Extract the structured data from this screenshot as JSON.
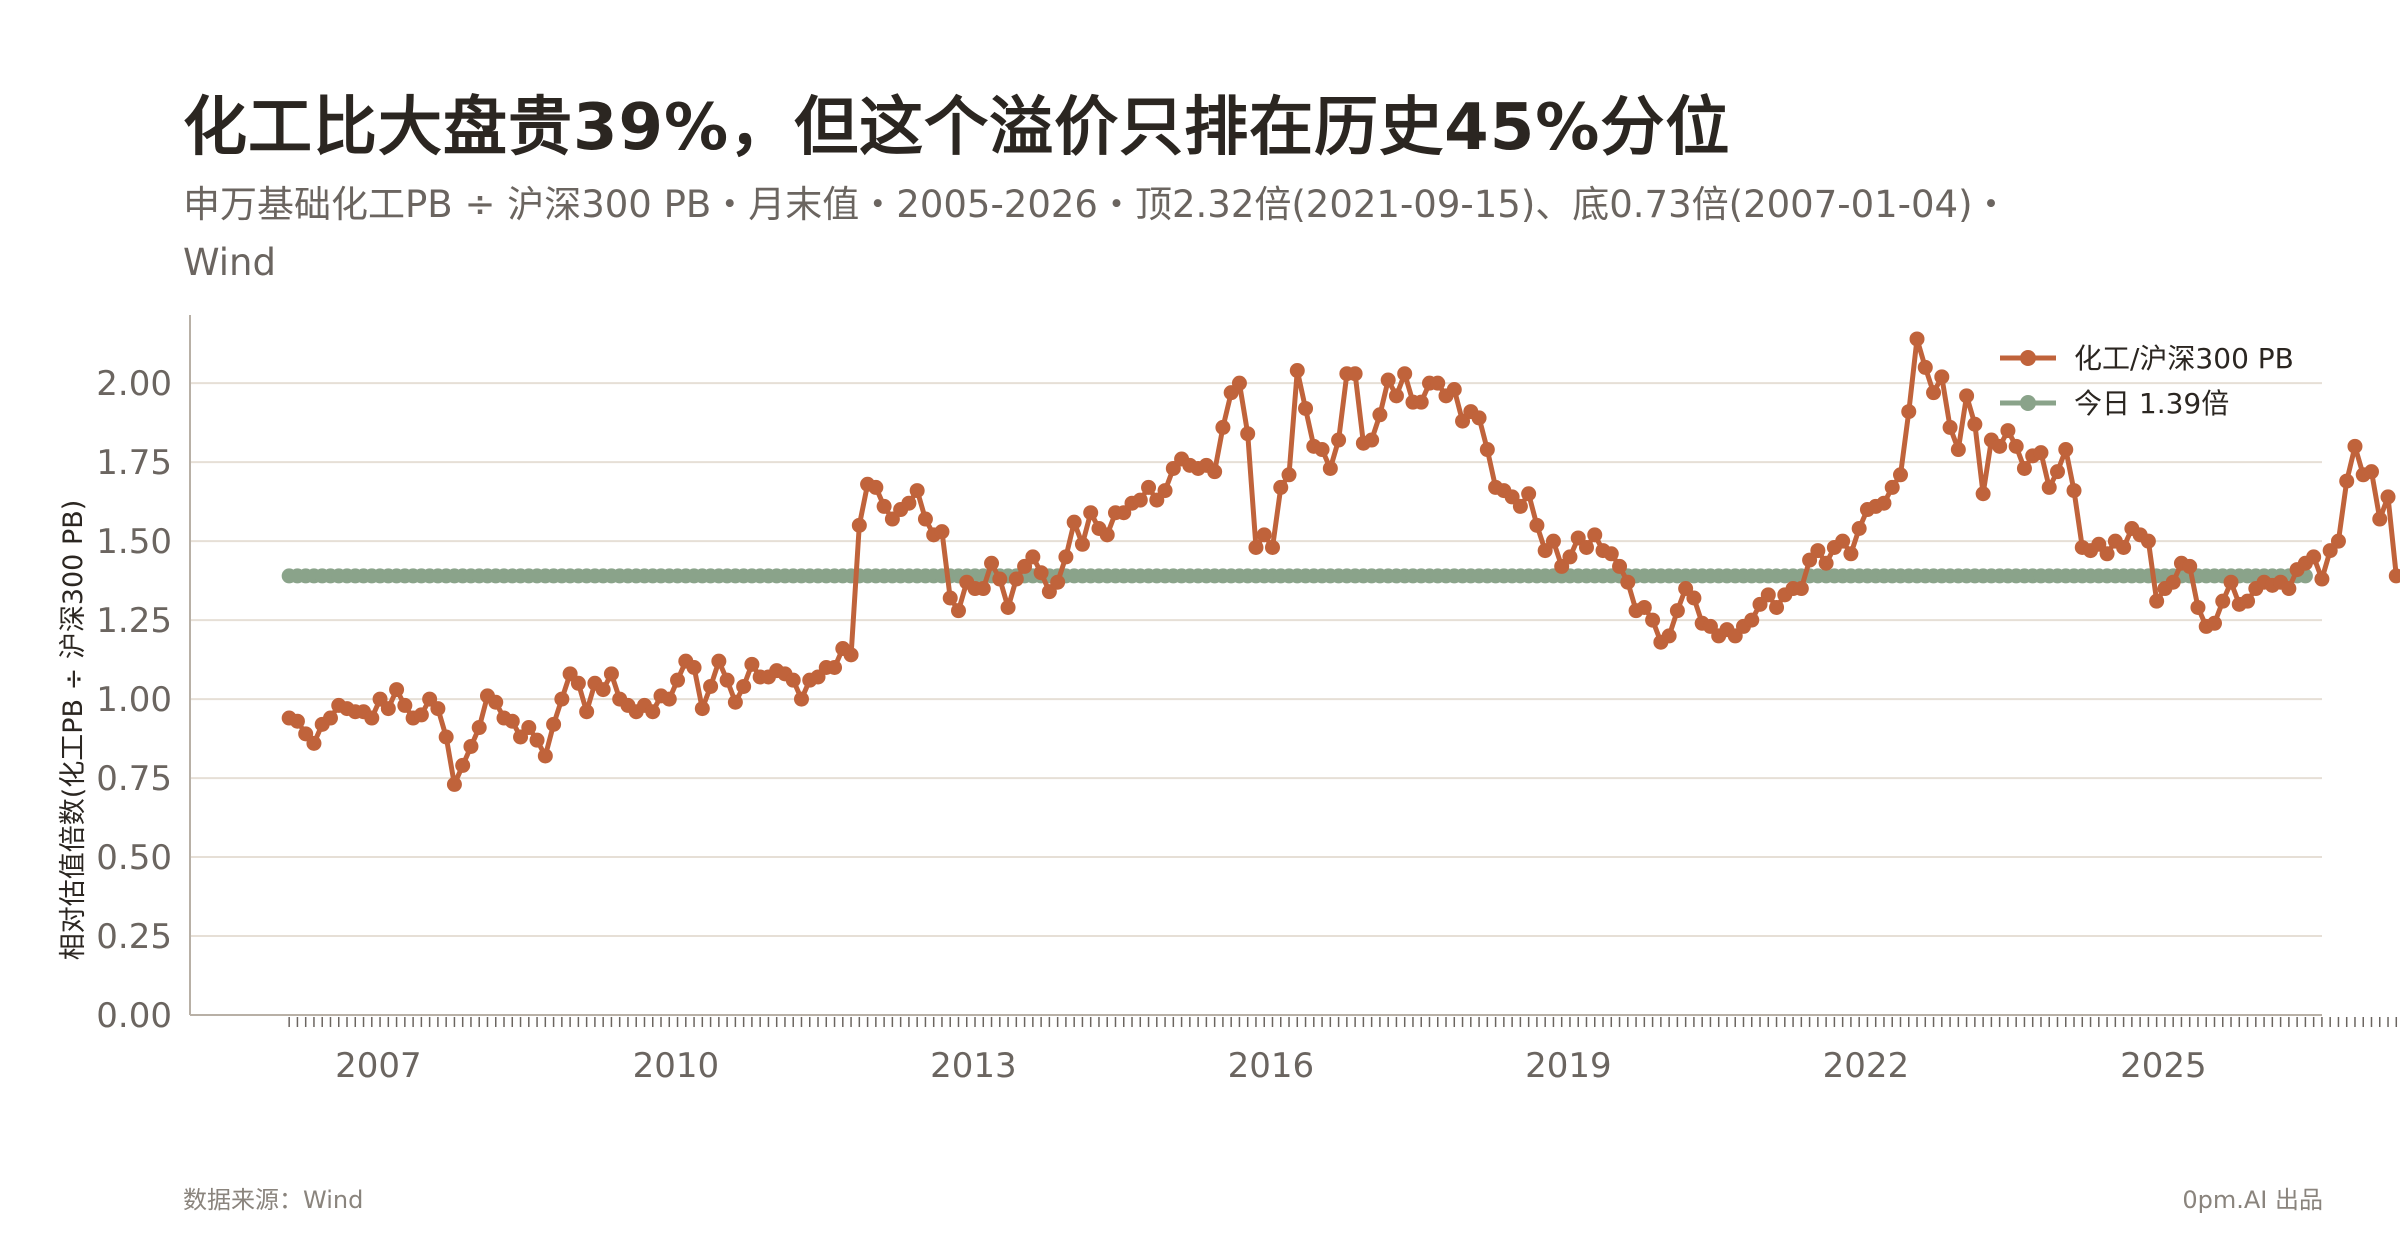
{
  "header": {
    "title": "化工比大盘贵39%，但这个溢价只排在历史45%分位",
    "subtitle": "申万基础化工PB ÷ 沪深300 PB・月末值・2005-2026・顶2.32倍(2021-09-15)、底0.73倍(2007-01-04)・Wind"
  },
  "footer": {
    "source": "数据来源：Wind",
    "credit": "0pm.AI 出品"
  },
  "colors": {
    "series": "#c0633b",
    "reference": "#8aa38a",
    "grid": "#e6dfd6",
    "axis": "#b8b0a6",
    "tick_text": "#6b6560"
  },
  "chart_data": {
    "type": "line",
    "ylabel": "相对估值倍数(化工PB ÷ 沪深300 PB)",
    "xlabel": "",
    "ylim": [
      0,
      2.2
    ],
    "yticks": [
      0,
      0.25,
      0.5,
      0.75,
      1.0,
      1.25,
      1.5,
      1.75,
      2.0
    ],
    "ytick_labels": [
      "0.00",
      "0.25",
      "0.50",
      "0.75",
      "1.00",
      "1.25",
      "1.50",
      "1.75",
      "2.00"
    ],
    "xlim": [
      2005.1,
      2026.6
    ],
    "xticks": [
      2007,
      2010,
      2013,
      2016,
      2019,
      2022,
      2025
    ],
    "xtick_labels": [
      "2007",
      "2010",
      "2013",
      "2016",
      "2019",
      "2022",
      "2025"
    ],
    "grid": true,
    "legend_position": "top-right",
    "series": [
      {
        "name": "化工/沪深300 PB",
        "x_start": 2006.1,
        "x_step": 0.08333,
        "values": [
          0.94,
          0.93,
          0.89,
          0.86,
          0.92,
          0.94,
          0.98,
          0.97,
          0.96,
          0.96,
          0.94,
          1.0,
          0.97,
          1.03,
          0.98,
          0.94,
          0.95,
          1.0,
          0.97,
          0.88,
          0.73,
          0.79,
          0.85,
          0.91,
          1.01,
          0.99,
          0.94,
          0.93,
          0.88,
          0.91,
          0.87,
          0.82,
          0.92,
          1.0,
          1.08,
          1.05,
          0.96,
          1.05,
          1.03,
          1.08,
          1.0,
          0.98,
          0.96,
          0.98,
          0.96,
          1.01,
          1.0,
          1.06,
          1.12,
          1.1,
          0.97,
          1.04,
          1.12,
          1.06,
          0.99,
          1.04,
          1.11,
          1.07,
          1.07,
          1.09,
          1.08,
          1.06,
          1.0,
          1.06,
          1.07,
          1.1,
          1.1,
          1.16,
          1.14,
          1.55,
          1.68,
          1.67,
          1.61,
          1.57,
          1.6,
          1.62,
          1.66,
          1.57,
          1.52,
          1.53,
          1.32,
          1.28,
          1.37,
          1.35,
          1.35,
          1.43,
          1.38,
          1.29,
          1.38,
          1.42,
          1.45,
          1.4,
          1.34,
          1.37,
          1.45,
          1.56,
          1.49,
          1.59,
          1.54,
          1.52,
          1.59,
          1.59,
          1.62,
          1.63,
          1.67,
          1.63,
          1.66,
          1.73,
          1.76,
          1.74,
          1.73,
          1.74,
          1.72,
          1.86,
          1.97,
          2.0,
          1.84,
          1.48,
          1.52,
          1.48,
          1.67,
          1.71,
          2.04,
          1.92,
          1.8,
          1.79,
          1.73,
          1.82,
          2.03,
          2.03,
          1.81,
          1.82,
          1.9,
          2.01,
          1.96,
          2.03,
          1.94,
          1.94,
          2.0,
          2.0,
          1.96,
          1.98,
          1.88,
          1.91,
          1.89,
          1.79,
          1.67,
          1.66,
          1.64,
          1.61,
          1.65,
          1.55,
          1.47,
          1.5,
          1.42,
          1.45,
          1.51,
          1.48,
          1.52,
          1.47,
          1.46,
          1.42,
          1.37,
          1.28,
          1.29,
          1.25,
          1.18,
          1.2,
          1.28,
          1.35,
          1.32,
          1.24,
          1.23,
          1.2,
          1.22,
          1.2,
          1.23,
          1.25,
          1.3,
          1.33,
          1.29,
          1.33,
          1.35,
          1.35,
          1.44,
          1.47,
          1.43,
          1.48,
          1.5,
          1.46,
          1.54,
          1.6,
          1.61,
          1.62,
          1.67,
          1.71,
          1.91,
          2.14,
          2.05,
          1.97,
          2.02,
          1.86,
          1.79,
          1.96,
          1.87,
          1.65,
          1.82,
          1.8,
          1.85,
          1.8,
          1.73,
          1.77,
          1.78,
          1.67,
          1.72,
          1.79,
          1.66,
          1.48,
          1.47,
          1.49,
          1.46,
          1.5,
          1.48,
          1.54,
          1.52,
          1.5,
          1.31,
          1.35,
          1.37,
          1.43,
          1.42,
          1.29,
          1.23,
          1.24,
          1.31,
          1.37,
          1.3,
          1.31,
          1.35,
          1.37,
          1.36,
          1.37,
          1.35,
          1.41,
          1.43,
          1.45,
          1.38,
          1.47,
          1.5,
          1.69,
          1.8,
          1.71,
          1.72,
          1.57,
          1.64,
          1.39
        ]
      },
      {
        "name": "今日 1.39倍",
        "constant": 1.39,
        "x_start": 2006.1,
        "x_end": 2026.45
      }
    ]
  }
}
